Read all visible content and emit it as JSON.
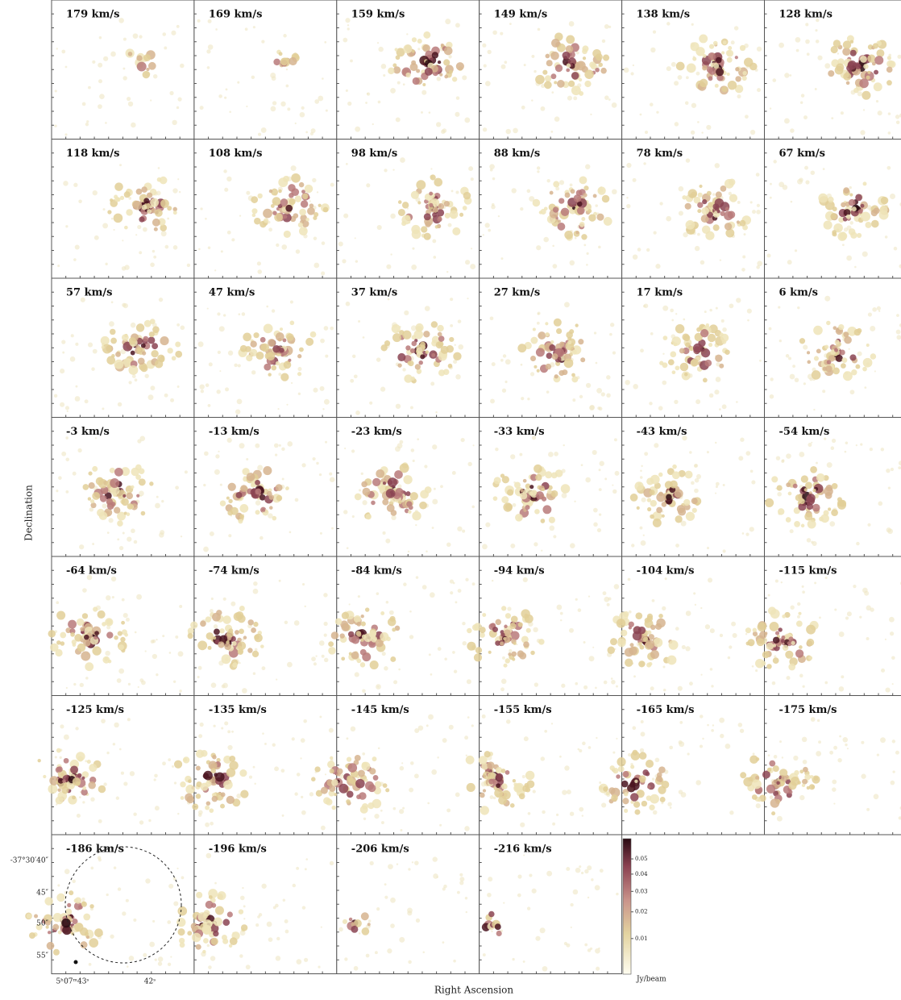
{
  "panels": [
    "179 km/s",
    "169 km/s",
    "159 km/s",
    "149 km/s",
    "138 km/s",
    "128 km/s",
    "118 km/s",
    "108 km/s",
    "98 km/s",
    "88 km/s",
    "78 km/s",
    "67 km/s",
    "57 km/s",
    "47 km/s",
    "37 km/s",
    "27 km/s",
    "17 km/s",
    "6 km/s",
    "-3 km/s",
    "-13 km/s",
    "-23 km/s",
    "-33 km/s",
    "-43 km/s",
    "-54 km/s",
    "-64 km/s",
    "-74 km/s",
    "-84 km/s",
    "-94 km/s",
    "-104 km/s",
    "-115 km/s",
    "-125 km/s",
    "-135 km/s",
    "-145 km/s",
    "-155 km/s",
    "-165 km/s",
    "-175 km/s",
    "-186 km/s",
    "-196 km/s",
    "-206 km/s",
    "-216 km/s"
  ],
  "x_label": "Right Ascension",
  "y_label": "Declination",
  "dec_ticks": [
    "-37°30′40″",
    "45″",
    "50″",
    "55″"
  ],
  "ra_ticks": [
    "5ʰ07ᵐ43ˢ",
    "42ˢ"
  ],
  "colorbar": {
    "label": "Jy/beam",
    "scale": "sqrt",
    "ylim": [
      0.002,
      0.065
    ],
    "ticks": [
      0.01,
      0.02,
      0.03,
      0.04,
      0.05
    ]
  }
}
